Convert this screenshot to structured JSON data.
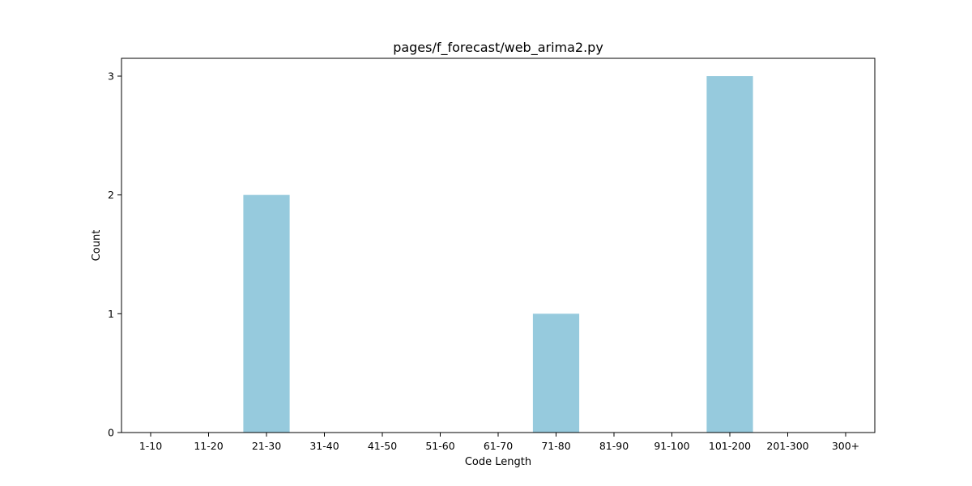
{
  "chart_data": {
    "type": "bar",
    "title": "pages/f_forecast/web_arima2.py",
    "xlabel": "Code Length",
    "ylabel": "Count",
    "categories": [
      "1-10",
      "11-20",
      "21-30",
      "31-40",
      "41-50",
      "51-60",
      "61-70",
      "71-80",
      "81-90",
      "91-100",
      "101-200",
      "201-300",
      "300+"
    ],
    "values": [
      0,
      0,
      2,
      0,
      0,
      0,
      0,
      1,
      0,
      0,
      3,
      0,
      0
    ],
    "ylim": [
      0,
      3.15
    ],
    "yticks": [
      0,
      1,
      2,
      3
    ],
    "bar_color": "#96cadd",
    "grid": false,
    "legend": "none"
  }
}
